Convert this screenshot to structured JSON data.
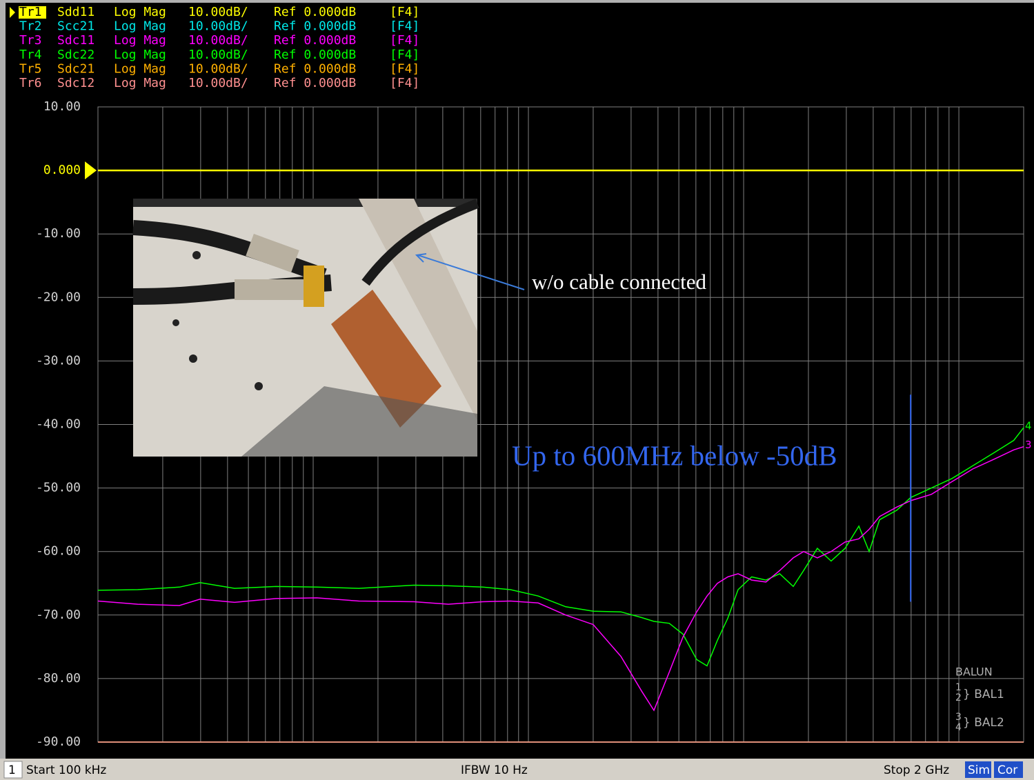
{
  "chart_data": {
    "type": "line",
    "xscale": "log",
    "xlim": [
      100000,
      2000000000
    ],
    "ylim": [
      -90,
      10
    ],
    "yticks": [
      {
        "value": 10,
        "label": "10.00"
      },
      {
        "value": 0,
        "label": "0.000"
      },
      {
        "value": -10,
        "label": "-10.00"
      },
      {
        "value": -20,
        "label": "-20.00"
      },
      {
        "value": -30,
        "label": "-30.00"
      },
      {
        "value": -40,
        "label": "-40.00"
      },
      {
        "value": -50,
        "label": "-50.00"
      },
      {
        "value": -60,
        "label": "-60.00"
      },
      {
        "value": -70,
        "label": "-70.00"
      },
      {
        "value": -80,
        "label": "-80.00"
      },
      {
        "value": -90,
        "label": "-90.00"
      }
    ],
    "grid": true,
    "x": [
      100000,
      153000,
      239000,
      298000,
      431000,
      671000,
      1040000,
      1630000,
      2940000,
      4250000,
      6140000,
      8260000,
      11100000,
      14900000,
      20000000,
      26900000,
      33600000,
      38300000,
      45100000,
      52200000,
      60500000,
      67600000,
      75500000,
      84400000,
      94200000,
      109000000,
      127000000,
      147000000,
      170000000,
      190000000,
      220000000,
      255000000,
      296000000,
      343000000,
      383000000,
      428000000,
      515000000,
      597000000,
      745000000,
      929000000,
      1160000000,
      1450000000,
      1800000000,
      2000000000
    ],
    "series": [
      {
        "name": "Tr1",
        "param": "Sdd11",
        "format": "Log Mag",
        "scale": "10.00dB/",
        "ref": "Ref 0.000dB",
        "channel": "[F4]",
        "color": "#ffff00",
        "active": true,
        "x": [
          100000,
          2000000000
        ],
        "values": [
          0,
          0
        ]
      },
      {
        "name": "Tr2",
        "param": "Scc21",
        "format": "Log Mag",
        "scale": "10.00dB/",
        "ref": "Ref 0.000dB",
        "channel": "[F4]",
        "color": "#00e8e8",
        "x": [
          100000,
          2000000000
        ],
        "values": [
          -90,
          -90
        ]
      },
      {
        "name": "Tr3",
        "param": "Sdc11",
        "format": "Log Mag",
        "scale": "10.00dB/",
        "ref": "Ref 0.000dB",
        "channel": "[F4]",
        "color": "#ff00ff",
        "end_label": "3",
        "values": [
          -67.8,
          -68.3,
          -68.5,
          -67.5,
          -68.0,
          -67.4,
          -67.3,
          -67.8,
          -67.9,
          -68.3,
          -67.9,
          -67.8,
          -68.1,
          -70.0,
          -71.5,
          -76.5,
          -82.0,
          -85.0,
          -79.0,
          -73.5,
          -69.5,
          -67.0,
          -65.0,
          -64.0,
          -63.5,
          -64.5,
          -64.8,
          -63.0,
          -61.0,
          -60.0,
          -61.0,
          -60.0,
          -58.5,
          -58.0,
          -56.5,
          -54.5,
          -53.0,
          -52.0,
          -51.0,
          -49.0,
          -47.0,
          -45.5,
          -44.0,
          -43.5
        ]
      },
      {
        "name": "Tr4",
        "param": "Sdc22",
        "format": "Log Mag",
        "scale": "10.00dB/",
        "ref": "Ref 0.000dB",
        "channel": "[F4]",
        "color": "#00ff00",
        "end_label": "4",
        "values": [
          -66.1,
          -66.0,
          -65.6,
          -64.9,
          -65.8,
          -65.5,
          -65.6,
          -65.8,
          -65.3,
          -65.4,
          -65.6,
          -66.0,
          -67.0,
          -68.7,
          -69.4,
          -69.5,
          -70.4,
          -71.0,
          -71.3,
          -73.0,
          -77.0,
          -78.0,
          -74.0,
          -70.5,
          -66.0,
          -64.0,
          -64.5,
          -63.5,
          -65.5,
          -63.0,
          -59.5,
          -61.5,
          -59.5,
          -56.0,
          -60.0,
          -55.0,
          -53.5,
          -51.5,
          -50.0,
          -48.5,
          -46.5,
          -44.5,
          -42.5,
          -40.5
        ]
      },
      {
        "name": "Tr5",
        "param": "Sdc21",
        "format": "Log Mag",
        "scale": "10.00dB/",
        "ref": "Ref 0.000dB",
        "channel": "[F4]",
        "color": "#ffb000",
        "x": [
          100000,
          2000000000
        ],
        "values": [
          -90,
          -90
        ]
      },
      {
        "name": "Tr6",
        "param": "Sdc12",
        "format": "Log Mag",
        "scale": "10.00dB/",
        "ref": "Ref 0.000dB",
        "channel": "[F4]",
        "color": "#ff9090",
        "x": [
          100000,
          2000000000
        ],
        "values": [
          -90,
          -90
        ]
      }
    ],
    "annotations": [
      {
        "text": "Up to 600MHz below -50dB",
        "line_x": 597000000,
        "line_y": [
          -35.3,
          -67.9
        ],
        "color": "#3366ee"
      },
      {
        "text": "w/o cable connected",
        "color": "#ffffff"
      }
    ]
  },
  "balun": {
    "title": "BALUN",
    "groups": [
      {
        "ports": [
          "1",
          "2"
        ],
        "name": "} BAL1"
      },
      {
        "ports": [
          "3",
          "4"
        ],
        "name": "} BAL2"
      }
    ]
  },
  "status_bar": {
    "channel": "1",
    "start": "Start 100 kHz",
    "ifbw": "IFBW 10 Hz",
    "stop": "Stop 2 GHz",
    "buttons": [
      "Sim",
      "Cor"
    ]
  }
}
